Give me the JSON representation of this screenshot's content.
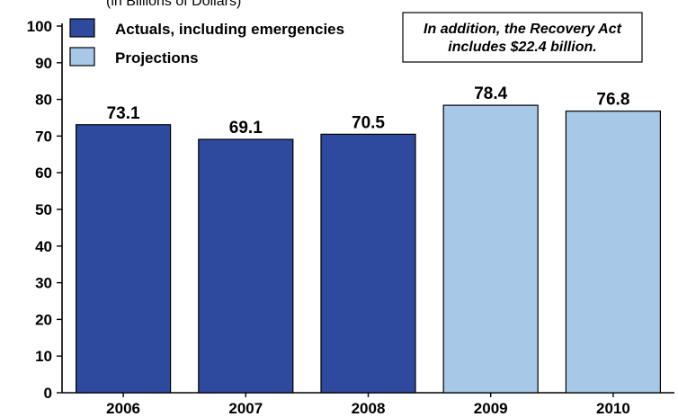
{
  "chart_data": {
    "type": "bar",
    "title_fragment": "(in Billions of Dollars)",
    "categories": [
      "2006",
      "2007",
      "2008",
      "2009",
      "2010"
    ],
    "values": [
      73.1,
      69.1,
      70.5,
      78.4,
      76.8
    ],
    "data_labels": [
      "73.1",
      "69.1",
      "70.5",
      "78.4",
      "76.8"
    ],
    "bar_kind": [
      "actual",
      "actual",
      "actual",
      "projection",
      "projection"
    ],
    "ylim": [
      0,
      100
    ],
    "yticks": [
      0,
      10,
      20,
      30,
      40,
      50,
      60,
      70,
      80,
      90,
      100
    ],
    "grid": false,
    "legend": {
      "placement": "top-left",
      "entries": [
        {
          "label": "Actuals, including emergencies",
          "color": "#2e4a9e"
        },
        {
          "label": "Projections",
          "color": "#a8c8e8"
        }
      ]
    },
    "annotation": {
      "line1": "In addition, the Recovery Act",
      "line2": "includes $22.4 billion."
    },
    "colors": {
      "actual": "#2e4a9e",
      "projection": "#a8c8e8",
      "edge": "#000000"
    }
  }
}
